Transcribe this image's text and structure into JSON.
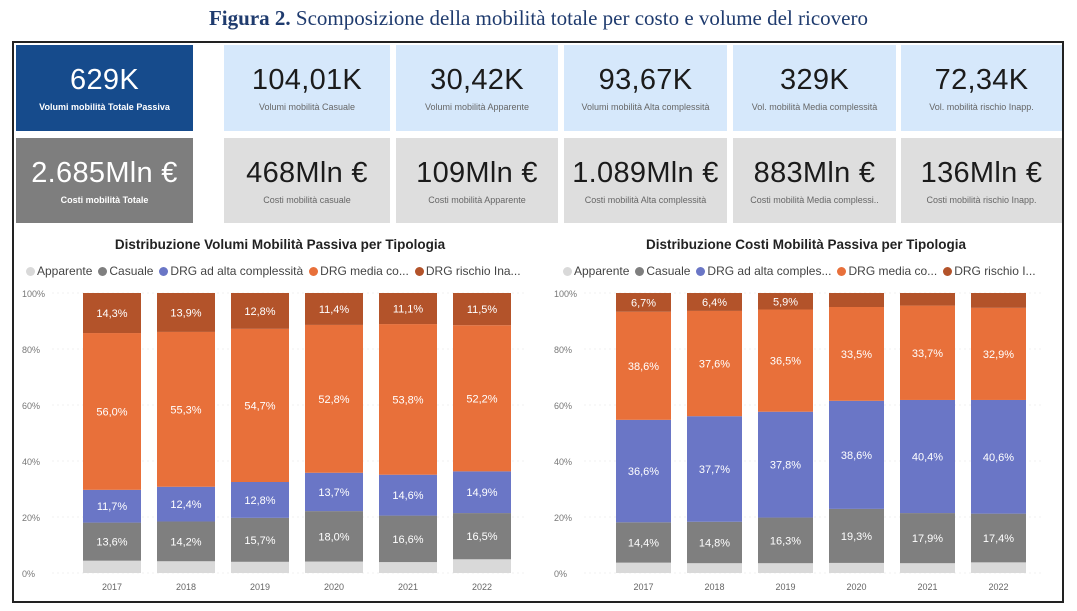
{
  "figure": {
    "label": "Figura 2.",
    "caption": "Scomposizione della mobilità totale per costo e volume del ricovero"
  },
  "kpi": {
    "volumes": [
      {
        "value": "629K",
        "label": "Volumi mobilità Totale Passiva"
      },
      {
        "value": "104,01K",
        "label": "Volumi mobilità Casuale"
      },
      {
        "value": "30,42K",
        "label": "Volumi mobilità Apparente"
      },
      {
        "value": "93,67K",
        "label": "Volumi mobilità Alta complessità"
      },
      {
        "value": "329K",
        "label": "Vol. mobilità Media complessità"
      },
      {
        "value": "72,34K",
        "label": "Vol. mobilità rischio Inapp."
      }
    ],
    "costs": [
      {
        "value": "2.685Mln €",
        "label": "Costi mobilità Totale"
      },
      {
        "value": "468Mln €",
        "label": "Costi mobilità casuale"
      },
      {
        "value": "109Mln €",
        "label": "Costi mobilità Apparente"
      },
      {
        "value": "1.089Mln €",
        "label": "Costi mobilità Alta complessità"
      },
      {
        "value": "883Mln €",
        "label": "Costi mobilità Media complessi.."
      },
      {
        "value": "136Mln €",
        "label": "Costi mobilità rischio Inapp."
      }
    ]
  },
  "colors": {
    "apparente": "#d9d9d9",
    "casuale": "#7f7f7f",
    "alta": "#6a76c6",
    "media": "#e8703a",
    "rischio": "#b3532a",
    "kpi_blue": "#164b8c"
  },
  "chart_data": [
    {
      "type": "bar",
      "stacked": "100%",
      "title": "Distribuzione Volumi Mobilità Passiva per Tipologia",
      "legend_position": "top-left",
      "legend": [
        "Apparente",
        "Casuale",
        "DRG ad alta complessità",
        "DRG media co...",
        "DRG rischio Ina..."
      ],
      "categories": [
        "2017",
        "2018",
        "2019",
        "2020",
        "2021",
        "2022"
      ],
      "yticks": [
        "0%",
        "20%",
        "40%",
        "60%",
        "80%",
        "100%"
      ],
      "ylim": [
        0,
        100
      ],
      "series": [
        {
          "name": "Apparente",
          "color": "#d9d9d9",
          "values": [
            4.4,
            4.2,
            4.0,
            4.1,
            3.9,
            4.9
          ],
          "labels": [
            null,
            null,
            null,
            null,
            null,
            null
          ]
        },
        {
          "name": "Casuale",
          "color": "#7f7f7f",
          "values": [
            13.6,
            14.2,
            15.7,
            18.0,
            16.6,
            16.5
          ],
          "labels": [
            "13,6%",
            "14,2%",
            "15,7%",
            "18,0%",
            "16,6%",
            "16,5%"
          ]
        },
        {
          "name": "DRG ad alta complessità",
          "color": "#6a76c6",
          "values": [
            11.7,
            12.4,
            12.8,
            13.7,
            14.6,
            14.9
          ],
          "labels": [
            "11,7%",
            "12,4%",
            "12,8%",
            "13,7%",
            "14,6%",
            "14,9%"
          ]
        },
        {
          "name": "DRG media co...",
          "color": "#e8703a",
          "values": [
            56.0,
            55.3,
            54.7,
            52.8,
            53.8,
            52.2
          ],
          "labels": [
            "56,0%",
            "55,3%",
            "54,7%",
            "52,8%",
            "53,8%",
            "52,2%"
          ]
        },
        {
          "name": "DRG rischio Ina...",
          "color": "#b3532a",
          "values": [
            14.3,
            13.9,
            12.8,
            11.4,
            11.1,
            11.5
          ],
          "labels": [
            "14,3%",
            "13,9%",
            "12,8%",
            "11,4%",
            "11,1%",
            "11,5%"
          ]
        }
      ]
    },
    {
      "type": "bar",
      "stacked": "100%",
      "title": "Distribuzione Costi Mobilità Passiva per Tipologia",
      "legend_position": "top-left",
      "legend": [
        "Apparente",
        "Casuale",
        "DRG ad alta comples...",
        "DRG media co...",
        "DRG rischio I..."
      ],
      "categories": [
        "2017",
        "2018",
        "2019",
        "2020",
        "2021",
        "2022"
      ],
      "yticks": [
        "0%",
        "20%",
        "40%",
        "60%",
        "80%",
        "100%"
      ],
      "ylim": [
        0,
        100
      ],
      "series": [
        {
          "name": "Apparente",
          "color": "#d9d9d9",
          "values": [
            3.7,
            3.5,
            3.5,
            3.6,
            3.5,
            3.8
          ],
          "labels": [
            null,
            null,
            null,
            null,
            null,
            null
          ]
        },
        {
          "name": "Casuale",
          "color": "#7f7f7f",
          "values": [
            14.4,
            14.8,
            16.3,
            19.3,
            17.9,
            17.4
          ],
          "labels": [
            "14,4%",
            "14,8%",
            "16,3%",
            "19,3%",
            "17,9%",
            "17,4%"
          ]
        },
        {
          "name": "DRG ad alta comples...",
          "color": "#6a76c6",
          "values": [
            36.6,
            37.7,
            37.8,
            38.6,
            40.4,
            40.6
          ],
          "labels": [
            "36,6%",
            "37,7%",
            "37,8%",
            "38,6%",
            "40,4%",
            "40,6%"
          ]
        },
        {
          "name": "DRG media co...",
          "color": "#e8703a",
          "values": [
            38.6,
            37.6,
            36.5,
            33.5,
            33.7,
            32.9
          ],
          "labels": [
            "38,6%",
            "37,6%",
            "36,5%",
            "33,5%",
            "33,7%",
            "32,9%"
          ]
        },
        {
          "name": "DRG rischio I...",
          "color": "#b3532a",
          "values": [
            6.7,
            6.4,
            5.9,
            5.0,
            4.5,
            5.3
          ],
          "labels": [
            "6,7%",
            "6,4%",
            "5,9%",
            null,
            null,
            null
          ]
        }
      ]
    }
  ]
}
